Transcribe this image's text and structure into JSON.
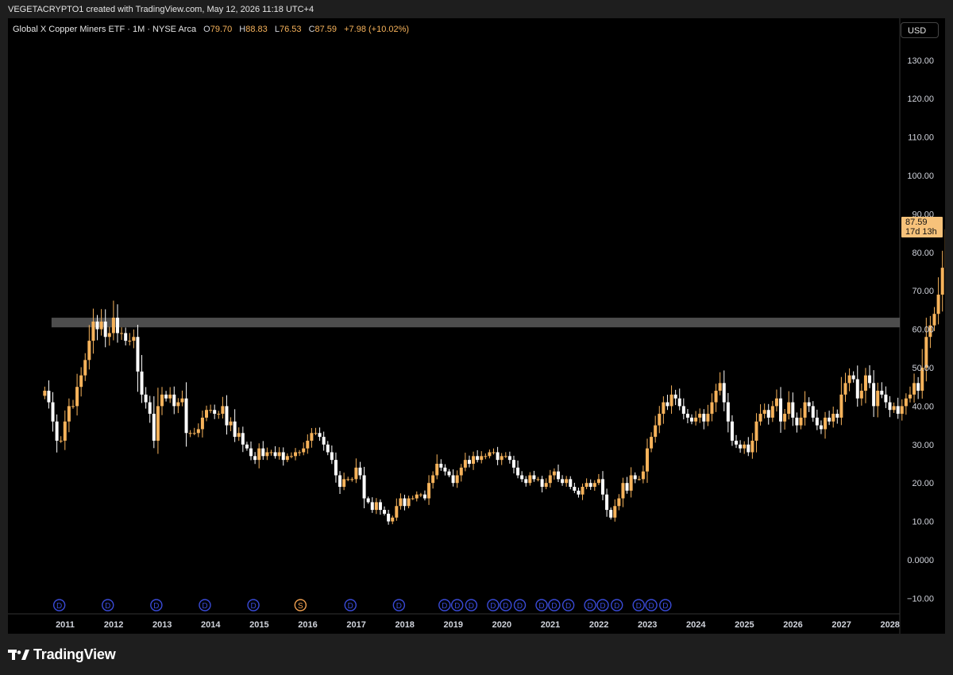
{
  "header": {
    "credit": "VEGETACRYPTO1 created with TradingView.com, May 12, 2026 11:18 UTC+4"
  },
  "legend": {
    "symbol": "Global X Copper Miners ETF · 1M · NYSE Arca",
    "open_label": "O",
    "open": "79.70",
    "high_label": "H",
    "high": "88.83",
    "low_label": "L",
    "low": "76.53",
    "close_label": "C",
    "close": "87.59",
    "change": "+7.98 (+10.02%)"
  },
  "currency": "USD",
  "price_tag": {
    "price": "87.59",
    "countdown": "17d 13h"
  },
  "logo": {
    "text": "TradingView",
    "icon": "tradingview-logo-icon"
  },
  "colors": {
    "up": "#f7b35b",
    "down": "#ffffff",
    "zone": "#5a5a5a",
    "dividend_marker": "#3a4bd8",
    "split_marker": "#f0a050"
  },
  "chart_data": {
    "type": "candlestick",
    "interval": "1M",
    "ylim": [
      -13,
      135
    ],
    "y_ticks": [
      "130.00",
      "120.00",
      "110.00",
      "100.00",
      "90.00",
      "80.00",
      "70.00",
      "60.00",
      "50.00",
      "40.00",
      "30.00",
      "20.00",
      "10.00",
      "0.0000",
      "−10.00"
    ],
    "y_tick_values": [
      130,
      120,
      110,
      100,
      90,
      80,
      70,
      60,
      50,
      40,
      30,
      20,
      10,
      0,
      -10
    ],
    "x_ticks": [
      "2011",
      "2012",
      "2013",
      "2014",
      "2015",
      "2016",
      "2017",
      "2018",
      "2019",
      "2020",
      "2021",
      "2022",
      "2023",
      "2024",
      "2025",
      "2026",
      "2027",
      "2028"
    ],
    "zone": {
      "low": 60.5,
      "high": 63
    },
    "event_markers": [
      "D",
      "D",
      "D",
      "D",
      "D",
      "S",
      "D",
      "D",
      "D",
      "D",
      "D",
      "D",
      "D",
      "D",
      "D",
      "D",
      "D",
      "D",
      "D",
      "D",
      "D",
      "D",
      "D"
    ],
    "event_marker_years": [
      2010.88,
      2011.88,
      2012.88,
      2013.88,
      2014.88,
      2015.85,
      2016.88,
      2017.88,
      2018.82,
      2019.08,
      2019.37,
      2019.82,
      2020.08,
      2020.37,
      2020.82,
      2021.08,
      2021.37,
      2021.82,
      2022.08,
      2022.37,
      2022.82,
      2023.08,
      2023.37
    ],
    "close_series": [
      44,
      41,
      36,
      31,
      31,
      36,
      40,
      40,
      45,
      48,
      52,
      57,
      62,
      60,
      62,
      58,
      59,
      63,
      59,
      59,
      57,
      57,
      58,
      49,
      43,
      41,
      38,
      31,
      40,
      43,
      42,
      43,
      40,
      41,
      42,
      33,
      33,
      33,
      34,
      37,
      39,
      39,
      38,
      38,
      40,
      35,
      36,
      32,
      33,
      30,
      29,
      27,
      26,
      29,
      27,
      28,
      28,
      27,
      28,
      26,
      27,
      27,
      28,
      28,
      29,
      31,
      33,
      33,
      32,
      30,
      28,
      26,
      22,
      19,
      21,
      21,
      21,
      24,
      22,
      16,
      15,
      13,
      15,
      13,
      12,
      10,
      11,
      14,
      16,
      14,
      16,
      16,
      17,
      17,
      16,
      20,
      22,
      25,
      24,
      23,
      22,
      20,
      22,
      24,
      26,
      25,
      27,
      26,
      27,
      27,
      28,
      28,
      26,
      27,
      27,
      26,
      24,
      22,
      21,
      20,
      22,
      21,
      21,
      19,
      20,
      22,
      23,
      21,
      20,
      21,
      19,
      18,
      17,
      19,
      20,
      19,
      20,
      21,
      17,
      13,
      11,
      14,
      16,
      20,
      18,
      22,
      21,
      21,
      23,
      29,
      32,
      35,
      38,
      41,
      40,
      43,
      42,
      40,
      38,
      37,
      36,
      37,
      38,
      36,
      38,
      41,
      44,
      46,
      41,
      36,
      31,
      30,
      29,
      30,
      28,
      31,
      36,
      38,
      39,
      37,
      40,
      42,
      36,
      38,
      41,
      37,
      35,
      37,
      41,
      40,
      37,
      35,
      34,
      37,
      36,
      38,
      37,
      43,
      46,
      48,
      47,
      42,
      44,
      48,
      46,
      40,
      44,
      43,
      41,
      39,
      40,
      38,
      40,
      42,
      43,
      46,
      44,
      50,
      58,
      61,
      64,
      69,
      76,
      86,
      95,
      81,
      77,
      79.7,
      87.59
    ]
  }
}
